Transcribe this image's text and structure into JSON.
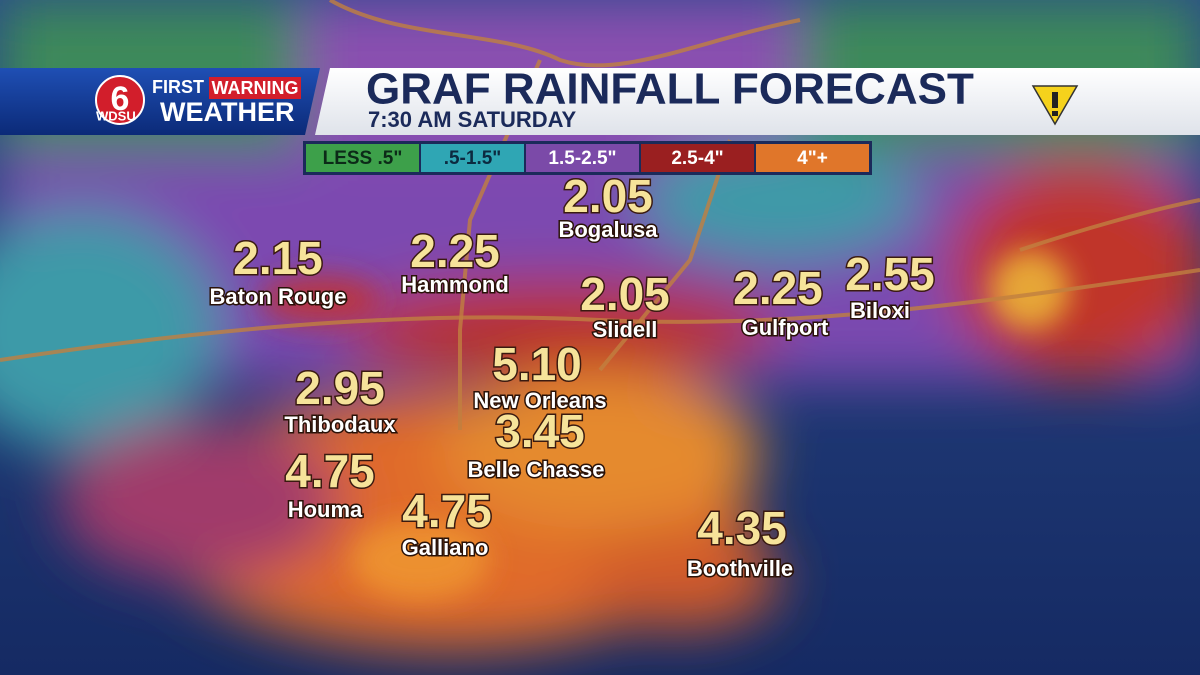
{
  "logo": {
    "number": "6",
    "first": "FIRST",
    "warning": "WARNING",
    "station": "WDSU",
    "weather": "WEATHER"
  },
  "header": {
    "title": "GRAF RAINFALL FORECAST",
    "subtitle": "7:30 AM  SATURDAY"
  },
  "legend": [
    "LESS .5\"",
    ".5-1.5\"",
    "1.5-2.5\"",
    "2.5-4\"",
    "4\"+"
  ],
  "cities": [
    {
      "name": "Bogalusa",
      "value": "2.05"
    },
    {
      "name": "Baton Rouge",
      "value": "2.15"
    },
    {
      "name": "Hammond",
      "value": "2.25"
    },
    {
      "name": "Slidell",
      "value": "2.05"
    },
    {
      "name": "Gulfport",
      "value": "2.25"
    },
    {
      "name": "Biloxi",
      "value": "2.55"
    },
    {
      "name": "New Orleans",
      "value": "5.10"
    },
    {
      "name": "Thibodaux",
      "value": "2.95"
    },
    {
      "name": "Belle Chasse",
      "value": "3.45"
    },
    {
      "name": "Houma",
      "value": "4.75"
    },
    {
      "name": "Galliano",
      "value": "4.75"
    },
    {
      "name": "Boothville",
      "value": "4.35"
    }
  ]
}
